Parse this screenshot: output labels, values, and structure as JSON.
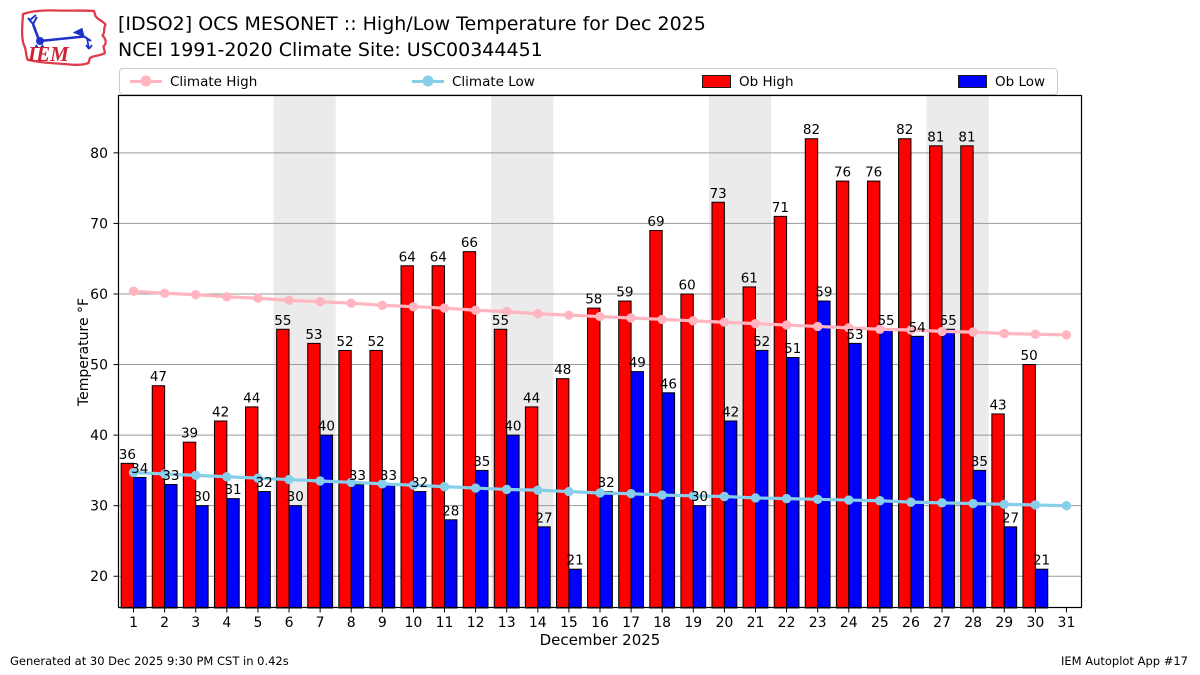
{
  "header": {
    "title_line1": "[IDSO2] OCS MESONET :: High/Low Temperature for Dec 2025",
    "title_line2": "NCEI 1991-2020 Climate Site: USC00344451",
    "logo_text": "IEM"
  },
  "legend": {
    "items": [
      {
        "label": "Climate High",
        "type": "line",
        "color": "#ffb6c1"
      },
      {
        "label": "Climate Low",
        "type": "line",
        "color": "#87ceeb"
      },
      {
        "label": "Ob High",
        "type": "patch",
        "color": "#ff0000"
      },
      {
        "label": "Ob Low",
        "type": "patch",
        "color": "#0000ff"
      }
    ]
  },
  "footer": {
    "left": "Generated at 30 Dec 2025 9:30 PM CST in 0.42s",
    "right": "IEM Autoplot App #17"
  },
  "chart_data": {
    "type": "bar",
    "title": "[IDSO2] OCS MESONET :: High/Low Temperature for Dec 2025",
    "subtitle": "NCEI 1991-2020 Climate Site: USC00344451",
    "xlabel": "December 2025",
    "ylabel": "Temperature °F",
    "ylim": [
      15.5,
      88.2
    ],
    "yticks": [
      20,
      30,
      40,
      50,
      60,
      70,
      80
    ],
    "grid": true,
    "legend_position": "top",
    "band_color": "#ebebeb",
    "grid_color": "#9a9a9a",
    "weekend_bands": [
      [
        6,
        7
      ],
      [
        13,
        14
      ],
      [
        20,
        21
      ],
      [
        27,
        28
      ]
    ],
    "x": [
      1,
      2,
      3,
      4,
      5,
      6,
      7,
      8,
      9,
      10,
      11,
      12,
      13,
      14,
      15,
      16,
      17,
      18,
      19,
      20,
      21,
      22,
      23,
      24,
      25,
      26,
      27,
      28,
      29,
      30,
      31
    ],
    "series": [
      {
        "name": "Ob High",
        "type": "bar",
        "color": "#ff0000",
        "values": [
          36,
          47,
          39,
          42,
          44,
          55,
          53,
          52,
          52,
          64,
          64,
          66,
          55,
          44,
          48,
          58,
          59,
          69,
          60,
          73,
          61,
          71,
          82,
          76,
          76,
          82,
          81,
          81,
          43,
          50,
          null
        ]
      },
      {
        "name": "Ob Low",
        "type": "bar",
        "color": "#0000ff",
        "values": [
          34,
          33,
          30,
          31,
          32,
          30,
          40,
          33,
          33,
          32,
          28,
          35,
          40,
          27,
          21,
          32,
          49,
          46,
          30,
          42,
          52,
          51,
          59,
          53,
          55,
          54,
          55,
          35,
          27,
          21,
          null
        ]
      },
      {
        "name": "Climate High",
        "type": "line",
        "color": "#ffb6c1",
        "values": [
          60.4,
          60.1,
          59.9,
          59.6,
          59.4,
          59.1,
          58.9,
          58.7,
          58.4,
          58.2,
          58.0,
          57.7,
          57.5,
          57.2,
          57.0,
          56.8,
          56.6,
          56.4,
          56.2,
          56.0,
          55.8,
          55.6,
          55.4,
          55.2,
          55.0,
          54.9,
          54.7,
          54.6,
          54.4,
          54.3,
          54.2
        ]
      },
      {
        "name": "Climate Low",
        "type": "line",
        "color": "#87ceeb",
        "values": [
          34.7,
          34.5,
          34.3,
          34.1,
          33.9,
          33.7,
          33.5,
          33.3,
          33.1,
          32.9,
          32.7,
          32.5,
          32.3,
          32.2,
          32.0,
          31.8,
          31.7,
          31.5,
          31.4,
          31.3,
          31.1,
          31.0,
          30.9,
          30.8,
          30.7,
          30.5,
          30.4,
          30.3,
          30.2,
          30.1,
          30.0
        ]
      }
    ]
  }
}
